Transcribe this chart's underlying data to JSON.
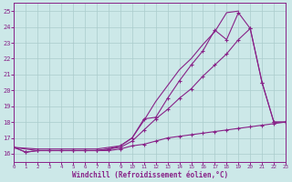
{
  "xlabel": "Windchill (Refroidissement éolien,°C)",
  "background_color": "#cce8e8",
  "grid_color": "#aacccc",
  "line_color": "#882288",
  "xlim": [
    0,
    23
  ],
  "ylim": [
    15.5,
    25.5
  ],
  "yticks": [
    16,
    17,
    18,
    19,
    20,
    21,
    22,
    23,
    24,
    25
  ],
  "xticks": [
    0,
    1,
    2,
    3,
    4,
    5,
    6,
    7,
    8,
    9,
    10,
    11,
    12,
    13,
    14,
    15,
    16,
    17,
    18,
    19,
    20,
    21,
    22,
    23
  ],
  "line1_x": [
    0,
    1,
    2,
    3,
    4,
    5,
    6,
    7,
    8,
    9,
    10,
    11,
    12,
    13,
    14,
    15,
    16,
    17,
    18,
    19,
    20,
    21,
    22,
    23
  ],
  "line1_y": [
    16.4,
    16.1,
    16.2,
    16.2,
    16.2,
    16.2,
    16.2,
    16.2,
    16.3,
    16.5,
    17.0,
    18.2,
    18.3,
    19.5,
    20.6,
    21.6,
    22.5,
    23.8,
    23.2,
    24.9,
    23.9,
    20.5,
    18.0,
    18.0
  ],
  "line2_x": [
    0,
    2,
    3,
    4,
    5,
    6,
    7,
    8,
    9,
    10,
    11,
    12,
    13,
    14,
    15,
    16,
    17,
    18,
    19
  ],
  "line2_y": [
    16.4,
    16.3,
    16.3,
    16.3,
    16.3,
    16.3,
    16.3,
    16.4,
    16.5,
    17.0,
    18.1,
    19.3,
    20.3,
    21.3,
    22.0,
    22.9,
    23.7,
    24.9,
    25.0
  ],
  "line3_x": [
    0,
    2,
    3,
    4,
    5,
    6,
    7,
    8,
    9,
    10,
    11,
    12,
    13,
    14,
    15,
    16,
    17,
    18,
    19,
    20,
    21,
    22,
    23
  ],
  "line3_y": [
    16.4,
    16.2,
    16.2,
    16.2,
    16.2,
    16.2,
    16.2,
    16.3,
    16.4,
    16.8,
    17.5,
    18.2,
    18.8,
    19.5,
    20.1,
    20.9,
    21.6,
    22.3,
    23.2,
    23.9,
    20.5,
    18.0,
    18.0
  ],
  "line4_x": [
    0,
    1,
    2,
    3,
    4,
    5,
    6,
    7,
    8,
    9,
    10,
    11,
    12,
    13,
    14,
    15,
    16,
    17,
    18,
    19,
    20,
    21,
    22,
    23
  ],
  "line4_y": [
    16.4,
    16.1,
    16.2,
    16.2,
    16.2,
    16.2,
    16.2,
    16.2,
    16.2,
    16.3,
    16.5,
    16.6,
    16.8,
    17.0,
    17.1,
    17.2,
    17.3,
    17.4,
    17.5,
    17.6,
    17.7,
    17.8,
    17.9,
    18.0
  ]
}
